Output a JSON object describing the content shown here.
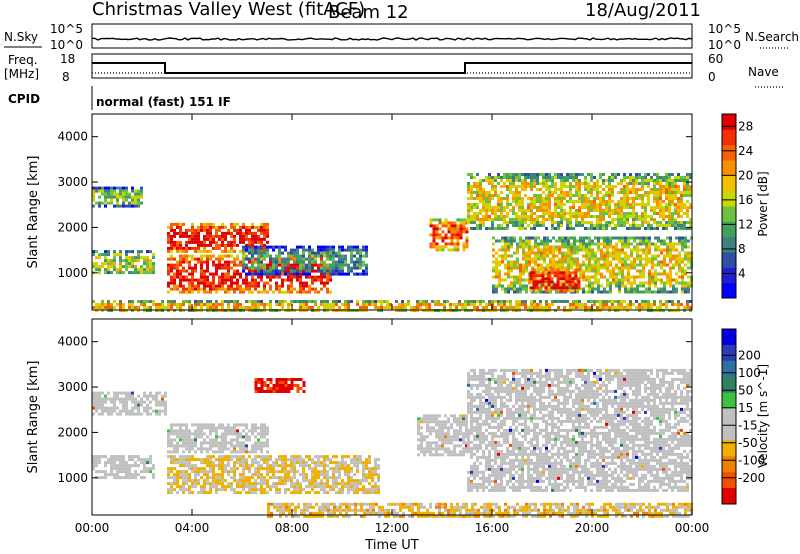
{
  "header": {
    "title": "Christmas Valley West (fitACF)",
    "beam": "Beam 12",
    "date": "18/Aug/2011"
  },
  "summary_panels": {
    "nsky_label": "N.Sky",
    "nsky_ticks": [
      "10^5",
      "10^0"
    ],
    "nsearch_label": "N.Search",
    "nsearch_ticks": [
      "10^5",
      "10^0"
    ],
    "freq_label_line1": "Freq.",
    "freq_label_line2": "[MHz]",
    "freq_ticks": [
      "18",
      "8"
    ],
    "nave_label": "Nave",
    "nave_ticks": [
      "60",
      "0"
    ],
    "cpid_label": "CPID",
    "cpid_text": "normal (fast) 151 IF"
  },
  "colors": {
    "power_scale": [
      "#0000ff",
      "#2020d0",
      "#3050a8",
      "#408080",
      "#40a060",
      "#70c040",
      "#c8d800",
      "#f0c000",
      "#f89000",
      "#f86000",
      "#f03000",
      "#e00000"
    ],
    "velocity_scale": [
      "#0000e0",
      "#2a3cb4",
      "#3070a0",
      "#308060",
      "#40c040",
      "#c0c0c0",
      "#c0c0c0",
      "#f0b000",
      "#f08000",
      "#f05000",
      "#e00000"
    ],
    "ground_scatter": "#c0c0c0"
  },
  "chart_data": [
    {
      "type": "heatmap",
      "title": "Power",
      "ylabel": "Slant Range [km]",
      "xlabel": "Time UT",
      "x_ticks": [
        "00:00",
        "04:00",
        "08:00",
        "12:00",
        "16:00",
        "20:00",
        "00:00"
      ],
      "y_ticks": [
        1000,
        2000,
        3000,
        4000
      ],
      "ylim": [
        180,
        4500
      ],
      "xlim_hours": [
        0,
        24
      ],
      "colorbar_label": "Power [dB]",
      "colorbar_ticks": [
        4,
        8,
        12,
        16,
        20,
        24,
        28
      ],
      "colorbar_range": [
        0,
        30
      ],
      "echo_regions": [
        {
          "t_start": 0.0,
          "t_end": 2.0,
          "r_start": 2500,
          "r_end": 2900,
          "level": 14
        },
        {
          "t_start": 0.0,
          "t_end": 2.5,
          "r_start": 1000,
          "r_end": 1500,
          "level": 16
        },
        {
          "t_start": 3.0,
          "t_end": 7.0,
          "r_start": 1500,
          "r_end": 2100,
          "level": 28
        },
        {
          "t_start": 3.0,
          "t_end": 9.5,
          "r_start": 600,
          "r_end": 1400,
          "level": 28
        },
        {
          "t_start": 6.0,
          "t_end": 11.0,
          "r_start": 1000,
          "r_end": 1600,
          "level": 10
        },
        {
          "t_start": 13.5,
          "t_end": 15.0,
          "r_start": 1500,
          "r_end": 2200,
          "level": 24
        },
        {
          "t_start": 15.0,
          "t_end": 24.0,
          "r_start": 2000,
          "r_end": 3200,
          "level": 18
        },
        {
          "t_start": 16.0,
          "t_end": 24.0,
          "r_start": 600,
          "r_end": 1800,
          "level": 18
        },
        {
          "t_start": 17.5,
          "t_end": 19.5,
          "r_start": 600,
          "r_end": 1100,
          "level": 28
        },
        {
          "t_start": 0.0,
          "t_end": 24.0,
          "r_start": 180,
          "r_end": 400,
          "level": 20
        }
      ]
    },
    {
      "type": "heatmap",
      "title": "Velocity",
      "ylabel": "Slant Range [km]",
      "xlabel": "Time UT",
      "x_ticks": [
        "00:00",
        "04:00",
        "08:00",
        "12:00",
        "16:00",
        "20:00",
        "00:00"
      ],
      "y_ticks": [
        1000,
        2000,
        3000,
        4000
      ],
      "ylim": [
        180,
        4500
      ],
      "xlim_hours": [
        0,
        24
      ],
      "colorbar_label": "Velocity [m s^-1]",
      "colorbar_ticks": [
        200,
        100,
        50,
        15,
        -15,
        -50,
        -100,
        -200
      ],
      "echo_regions": [
        {
          "t_start": 0.0,
          "t_end": 3.0,
          "r_start": 2400,
          "r_end": 2900,
          "kind": "ground"
        },
        {
          "t_start": 3.0,
          "t_end": 7.0,
          "r_start": 1600,
          "r_end": 2200,
          "kind": "ground"
        },
        {
          "t_start": 0.0,
          "t_end": 2.5,
          "r_start": 1000,
          "r_end": 1500,
          "kind": "ground"
        },
        {
          "t_start": 3.0,
          "t_end": 11.5,
          "r_start": 700,
          "r_end": 1500,
          "velocity": -60
        },
        {
          "t_start": 6.5,
          "t_end": 8.5,
          "r_start": 2900,
          "r_end": 3200,
          "velocity": -200
        },
        {
          "t_start": 13.0,
          "t_end": 15.0,
          "r_start": 1500,
          "r_end": 2400,
          "kind": "ground"
        },
        {
          "t_start": 15.0,
          "t_end": 24.0,
          "r_start": 700,
          "r_end": 3400,
          "kind": "ground"
        },
        {
          "t_start": 7.0,
          "t_end": 24.0,
          "r_start": 180,
          "r_end": 450,
          "velocity": -70
        }
      ]
    }
  ]
}
